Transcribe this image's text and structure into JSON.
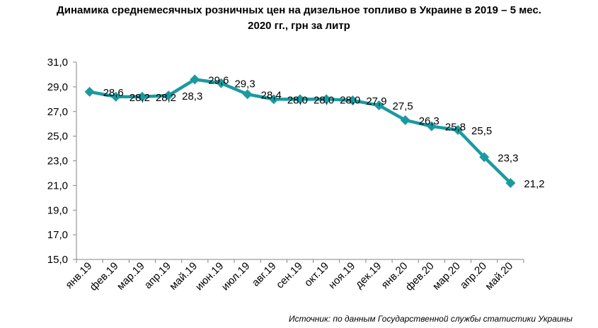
{
  "chart_data": {
    "type": "line",
    "title": "Динамика среднемесячных розничных цен на дизельное топливо в Украине в 2019 – 5 мес. 2020 гг., грн за литр",
    "title_lines": [
      "Динамика среднемесячных розничных цен на дизельное топливо в Украине в 2019 – 5 мес.",
      "2020 гг., грн за литр"
    ],
    "categories": [
      "янв.19",
      "фев.19",
      "мар.19",
      "апр.19",
      "май.19",
      "июн.19",
      "июл.19",
      "авг.19",
      "сен.19",
      "окт.19",
      "ноя.19",
      "дек.19",
      "янв.20",
      "фев.20",
      "мар.20",
      "апр.20",
      "май.20"
    ],
    "series": [
      {
        "values": [
          28.6,
          28.2,
          28.2,
          28.3,
          29.6,
          29.3,
          28.4,
          28.0,
          28.0,
          28.0,
          27.9,
          27.5,
          26.3,
          25.8,
          25.5,
          23.3,
          21.2
        ],
        "labels": [
          "28,6",
          "28,2",
          "28,2",
          "28,3",
          "29,6",
          "29,3",
          "28,4",
          "28,0",
          "28,0",
          "28,0",
          "27,9",
          "27,5",
          "26,3",
          "25,8",
          "25,5",
          "23,3",
          "21,2"
        ],
        "color": "#1a9aa0"
      }
    ],
    "ylim": [
      15.0,
      31.0
    ],
    "yticks": [
      "15,0",
      "17,0",
      "19,0",
      "21,0",
      "23,0",
      "25,0",
      "27,0",
      "29,0",
      "31,0"
    ],
    "xlabel": "",
    "ylabel": "",
    "grid": false,
    "legend": "none",
    "source": "Источник: по данным Государственной службы статистики Украины"
  }
}
